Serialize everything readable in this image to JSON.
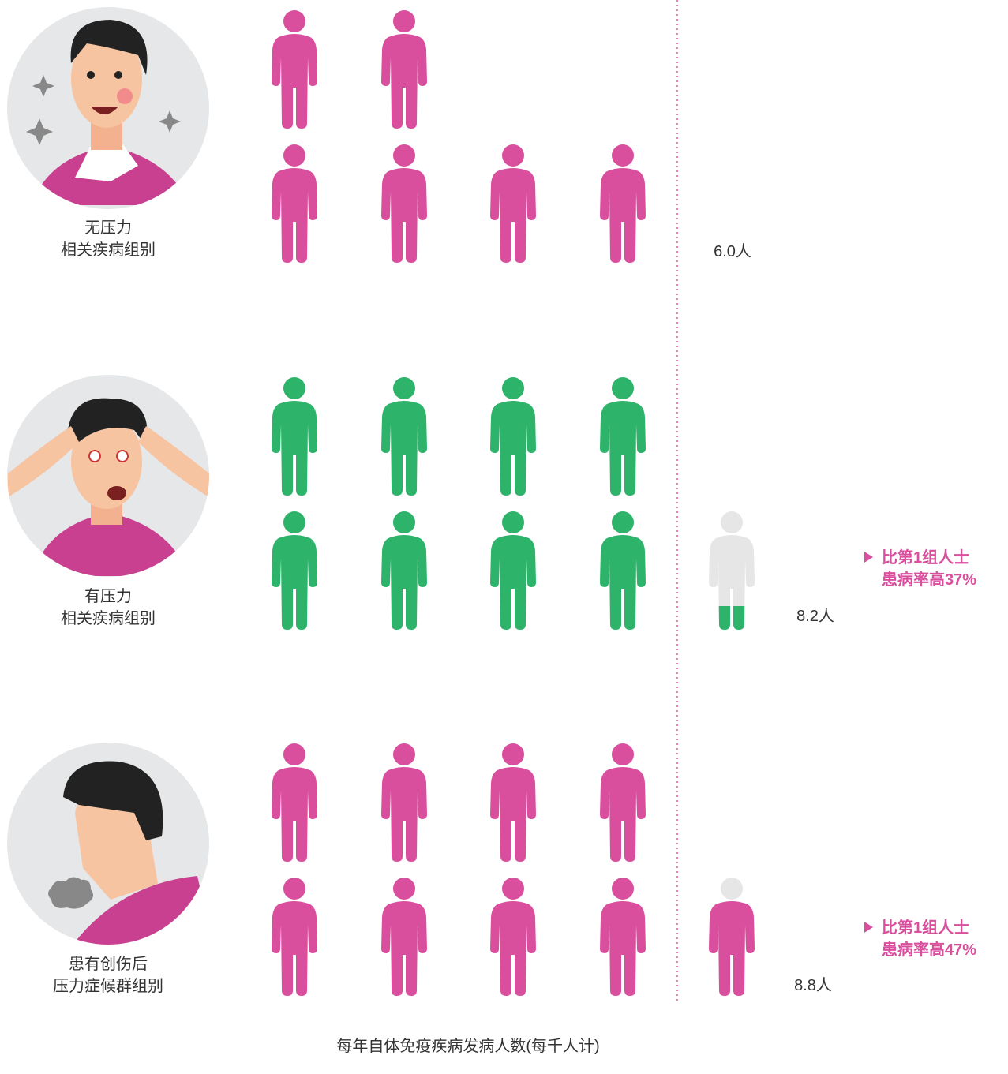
{
  "chart_data": {
    "type": "pictogram",
    "title": "每年自体免疫疾病发病人数(每千人计)",
    "categories": [
      [
        "无压力",
        "相关疾病组别"
      ],
      [
        "有压力",
        "相关疾病组别"
      ],
      [
        "患有创伤后",
        "压力症候群组别"
      ]
    ],
    "values": [
      6.0,
      8.2,
      8.8
    ],
    "value_labels": [
      "6.0人",
      "8.2人",
      "8.8人"
    ],
    "colors": [
      "#d94f9e",
      "#2db36a",
      "#d94f9e"
    ],
    "empty_color": "#e6e6e6",
    "annotations": [
      null,
      [
        "比第1组人士",
        "患病率高37%"
      ],
      [
        "比第1组人士",
        "患病率高47%"
      ]
    ]
  }
}
